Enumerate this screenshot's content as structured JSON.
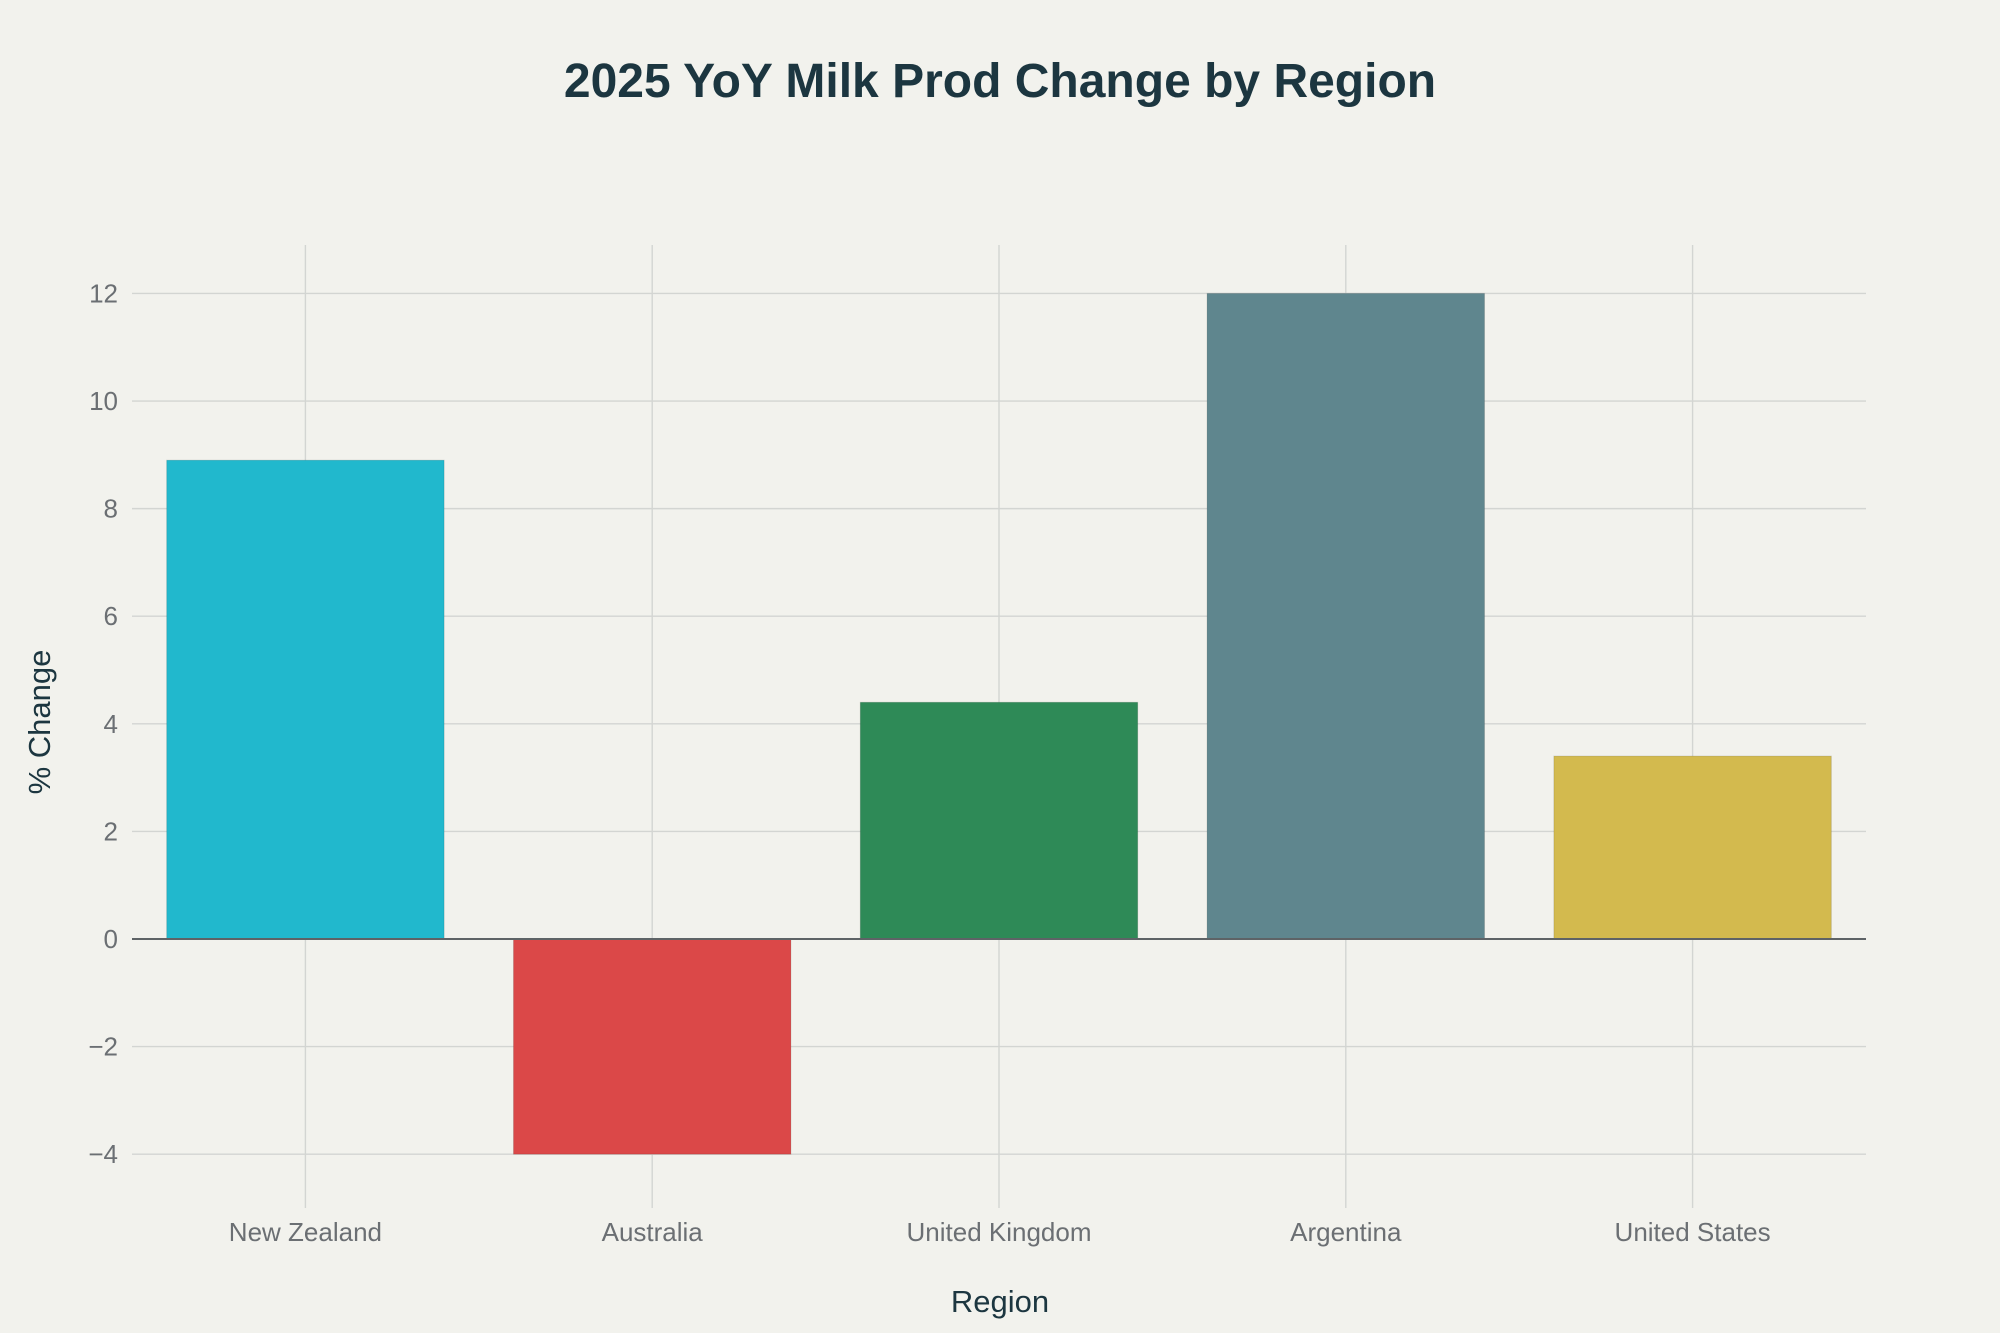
{
  "chart_data": {
    "type": "bar",
    "title": "2025 YoY Milk Prod Change by Region",
    "xlabel": "Region",
    "ylabel": "% Change",
    "categories": [
      "New Zealand",
      "Australia",
      "United Kingdom",
      "Argentina",
      "United States"
    ],
    "values": [
      8.9,
      -4.0,
      4.4,
      12.0,
      3.4
    ],
    "colors": [
      "#21b8cd",
      "#db4848",
      "#2e8a57",
      "#5f868e",
      "#d3ba4e"
    ],
    "ylim": [
      -5,
      12.9
    ],
    "yticks": [
      -4,
      -2,
      0,
      2,
      4,
      6,
      8,
      10,
      12
    ],
    "ytick_labels": [
      "−4",
      "−2",
      "0",
      "2",
      "4",
      "6",
      "8",
      "10",
      "12"
    ],
    "grid": true,
    "legend": "none"
  }
}
